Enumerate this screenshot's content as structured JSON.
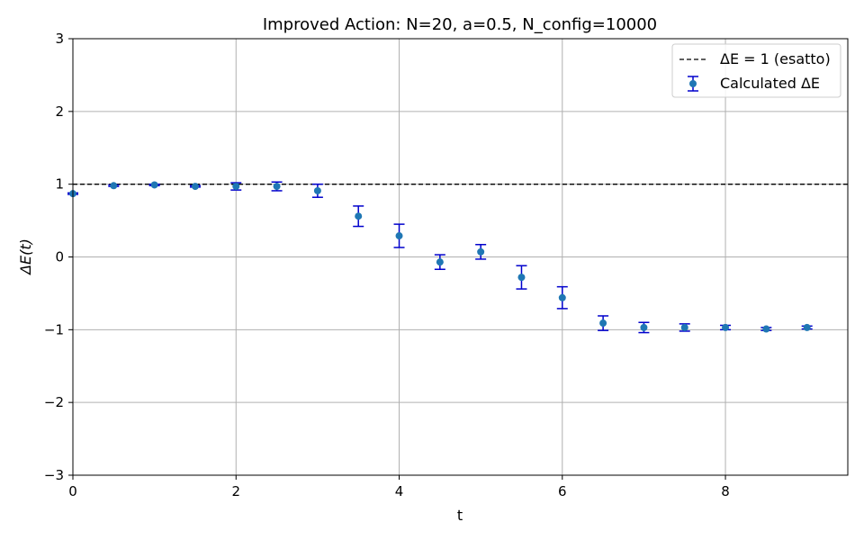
{
  "chart_data": {
    "type": "scatter",
    "title": "Improved Action: N=20, a=0.5, N_config=10000",
    "xlabel": "t",
    "ylabel": "ΔE(t)",
    "xlim": [
      0,
      9.5
    ],
    "ylim": [
      -3,
      3
    ],
    "xticks": [
      0,
      2,
      4,
      6,
      8
    ],
    "yticks": [
      -3,
      -2,
      -1,
      0,
      1,
      2,
      3
    ],
    "xtick_labels": [
      "0",
      "2",
      "4",
      "6",
      "8"
    ],
    "ytick_labels": [
      "−3",
      "−2",
      "−1",
      "0",
      "1",
      "2",
      "3"
    ],
    "grid": true,
    "legend_position": "top-right",
    "reference_line": {
      "name": "ΔE = 1 (esatto)",
      "y": 1,
      "color": "#000000",
      "style": "dashed"
    },
    "series": [
      {
        "name": "Calculated ΔE",
        "marker_color": "#1f77b4",
        "errorbar_color": "#0000cc",
        "x": [
          0,
          0.5,
          1.0,
          1.5,
          2.0,
          2.5,
          3.0,
          3.5,
          4.0,
          4.5,
          5.0,
          5.5,
          6.0,
          6.5,
          7.0,
          7.5,
          8.0,
          8.5,
          9.0
        ],
        "y": [
          0.87,
          0.98,
          0.99,
          0.97,
          0.97,
          0.97,
          0.91,
          0.56,
          0.29,
          -0.07,
          0.07,
          -0.28,
          -0.56,
          -0.91,
          -0.97,
          -0.97,
          -0.97,
          -0.99,
          -0.97
        ],
        "err": [
          0.01,
          0.01,
          0.01,
          0.01,
          0.05,
          0.06,
          0.09,
          0.14,
          0.16,
          0.1,
          0.1,
          0.16,
          0.15,
          0.1,
          0.07,
          0.05,
          0.03,
          0.02,
          0.02
        ]
      }
    ]
  }
}
